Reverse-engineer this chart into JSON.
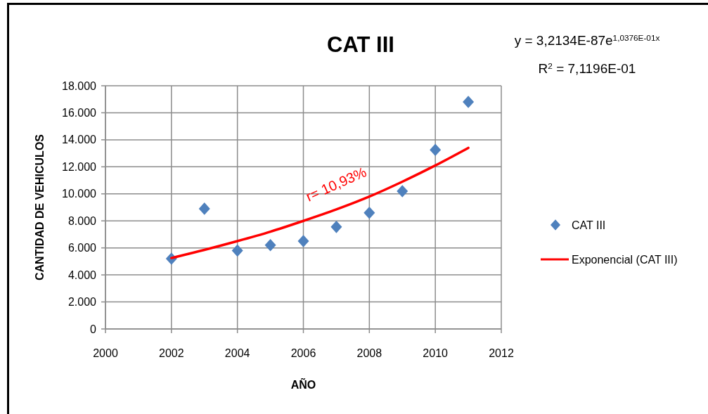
{
  "chart_data": {
    "type": "scatter",
    "title": "CAT III",
    "xlabel": "AÑO",
    "ylabel": "CANTIDAD DE VEHICULOS",
    "xlim": [
      2000,
      2012
    ],
    "xticks": [
      2000,
      2002,
      2004,
      2006,
      2008,
      2010,
      2012
    ],
    "ylim": [
      0,
      18000
    ],
    "yticks": [
      0,
      {
        "value": 2000,
        "label": "2.000"
      },
      {
        "value": 4000,
        "label": "4.000"
      },
      {
        "value": 6000,
        "label": "6.000"
      },
      {
        "value": 8000,
        "label": "8.000"
      },
      {
        "value": 10000,
        "label": "10.000"
      },
      {
        "value": 12000,
        "label": "12.000"
      },
      {
        "value": 14000,
        "label": "14.000"
      },
      {
        "value": 16000,
        "label": "16.000"
      },
      {
        "value": 18000,
        "label": "18.000"
      }
    ],
    "grid": true,
    "legend": "right",
    "series": [
      {
        "name": "CAT III",
        "marker": "diamond",
        "color": "#4f81bd",
        "x": [
          2002,
          2003,
          2004,
          2005,
          2006,
          2007,
          2008,
          2009,
          2010,
          2011
        ],
        "values": [
          5200,
          8900,
          5800,
          6200,
          6500,
          7550,
          8600,
          10200,
          13250,
          16800
        ]
      },
      {
        "name": "Exponencial (CAT III)",
        "type": "line",
        "color": "#ff0000",
        "x": [
          2002,
          2003,
          2004,
          2005,
          2006,
          2007,
          2008,
          2009,
          2010,
          2011
        ],
        "values": [
          5250,
          5850,
          6500,
          7200,
          8000,
          8850,
          9800,
          10900,
          12100,
          13400
        ]
      }
    ],
    "annotations": [
      "y = 3,2134E-87e$^{1,0376E-01x}$",
      "R$^{2}$ = 7,1196E-01",
      "r= 10,93%"
    ]
  }
}
